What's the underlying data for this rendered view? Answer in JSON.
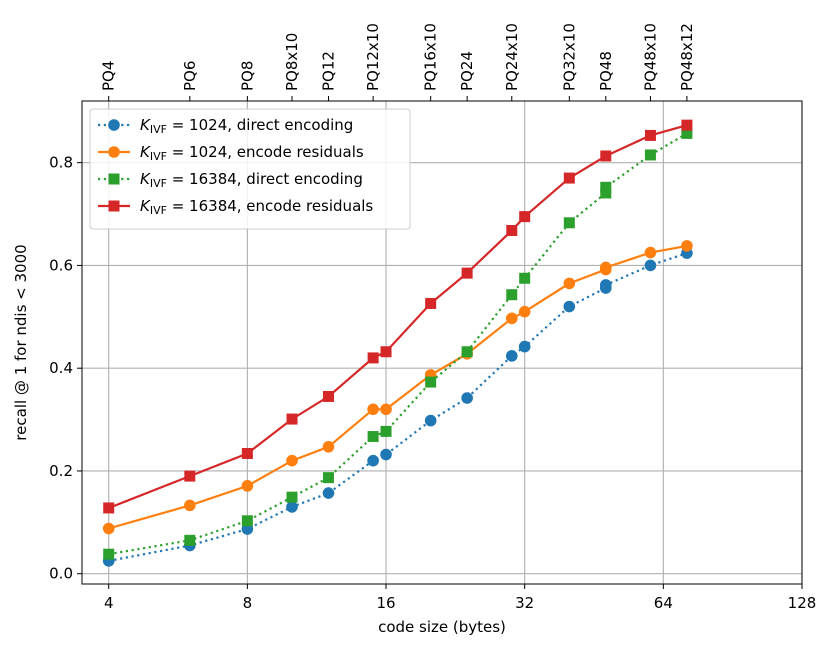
{
  "chart_data": {
    "type": "line",
    "x_scale": "log2",
    "xlabel": "code size (bytes)",
    "ylabel": "recall @ 1 for ndis < 3000",
    "xlim": [
      3.5,
      128
    ],
    "ylim": [
      -0.02,
      0.92
    ],
    "x_ticks": [
      4,
      8,
      16,
      32,
      64,
      128
    ],
    "x_tick_labels": [
      "4",
      "8",
      "16",
      "32",
      "64",
      "128"
    ],
    "y_ticks": [
      0.0,
      0.2,
      0.4,
      0.6,
      0.8
    ],
    "y_tick_labels": [
      "0.0",
      "0.2",
      "0.4",
      "0.6",
      "0.8"
    ],
    "top_ticks": [
      {
        "label": "PQ4",
        "x": 4
      },
      {
        "label": "PQ6",
        "x": 6
      },
      {
        "label": "PQ8",
        "x": 8
      },
      {
        "label": "PQ8x10",
        "x": 10
      },
      {
        "label": "PQ12",
        "x": 12
      },
      {
        "label": "PQ12x10",
        "x": 15
      },
      {
        "label": "PQ16x10",
        "x": 20
      },
      {
        "label": "PQ24",
        "x": 24
      },
      {
        "label": "PQ24x10",
        "x": 30
      },
      {
        "label": "PQ32x10",
        "x": 40
      },
      {
        "label": "PQ48",
        "x": 48
      },
      {
        "label": "PQ48x10",
        "x": 60
      },
      {
        "label": "PQ48x12",
        "x": 72
      }
    ],
    "grid": true,
    "legend_placement": "top-left",
    "series": [
      {
        "name": "K_IVF = 1024, direct encoding",
        "legend_prefix": "K",
        "legend_sub": "IVF",
        "legend_rest": " = 1024, direct encoding",
        "color": "#1f77b4",
        "linestyle": "dotted",
        "marker": "circle",
        "x": [
          4,
          6,
          8,
          10,
          12,
          15,
          16,
          20,
          24,
          30,
          32,
          40,
          48,
          48,
          60,
          72
        ],
        "y": [
          0.025,
          0.055,
          0.087,
          0.13,
          0.157,
          0.22,
          0.232,
          0.298,
          0.342,
          0.424,
          0.442,
          0.52,
          0.556,
          0.562,
          0.6,
          0.624
        ]
      },
      {
        "name": "K_IVF = 1024, encode residuals",
        "legend_prefix": "K",
        "legend_sub": "IVF",
        "legend_rest": " = 1024, encode residuals",
        "color": "#ff7f0e",
        "linestyle": "solid",
        "marker": "circle",
        "x": [
          4,
          6,
          8,
          10,
          12,
          15,
          16,
          20,
          24,
          30,
          32,
          40,
          48,
          48,
          60,
          72
        ],
        "y": [
          0.088,
          0.133,
          0.171,
          0.22,
          0.247,
          0.32,
          0.32,
          0.387,
          0.428,
          0.497,
          0.51,
          0.565,
          0.592,
          0.596,
          0.625,
          0.638
        ]
      },
      {
        "name": "K_IVF = 16384, direct encoding",
        "legend_prefix": "K",
        "legend_sub": "IVF",
        "legend_rest": " = 16384, direct encoding",
        "color": "#2ca02c",
        "linestyle": "dotted",
        "marker": "square",
        "x": [
          4,
          6,
          8,
          10,
          12,
          15,
          16,
          20,
          24,
          30,
          32,
          40,
          48,
          48,
          60,
          72
        ],
        "y": [
          0.038,
          0.065,
          0.103,
          0.149,
          0.187,
          0.267,
          0.277,
          0.373,
          0.432,
          0.543,
          0.575,
          0.683,
          0.741,
          0.752,
          0.815,
          0.857
        ]
      },
      {
        "name": "K_IVF = 16384, encode residuals",
        "legend_prefix": "K",
        "legend_sub": "IVF",
        "legend_rest": " = 16384, encode residuals",
        "color": "#d62728",
        "linestyle": "solid",
        "marker": "square",
        "x": [
          4,
          6,
          8,
          10,
          12,
          15,
          16,
          20,
          24,
          30,
          32,
          40,
          48,
          60,
          72
        ],
        "y": [
          0.128,
          0.19,
          0.234,
          0.301,
          0.345,
          0.42,
          0.432,
          0.526,
          0.585,
          0.668,
          0.695,
          0.77,
          0.813,
          0.853,
          0.873
        ]
      }
    ]
  }
}
